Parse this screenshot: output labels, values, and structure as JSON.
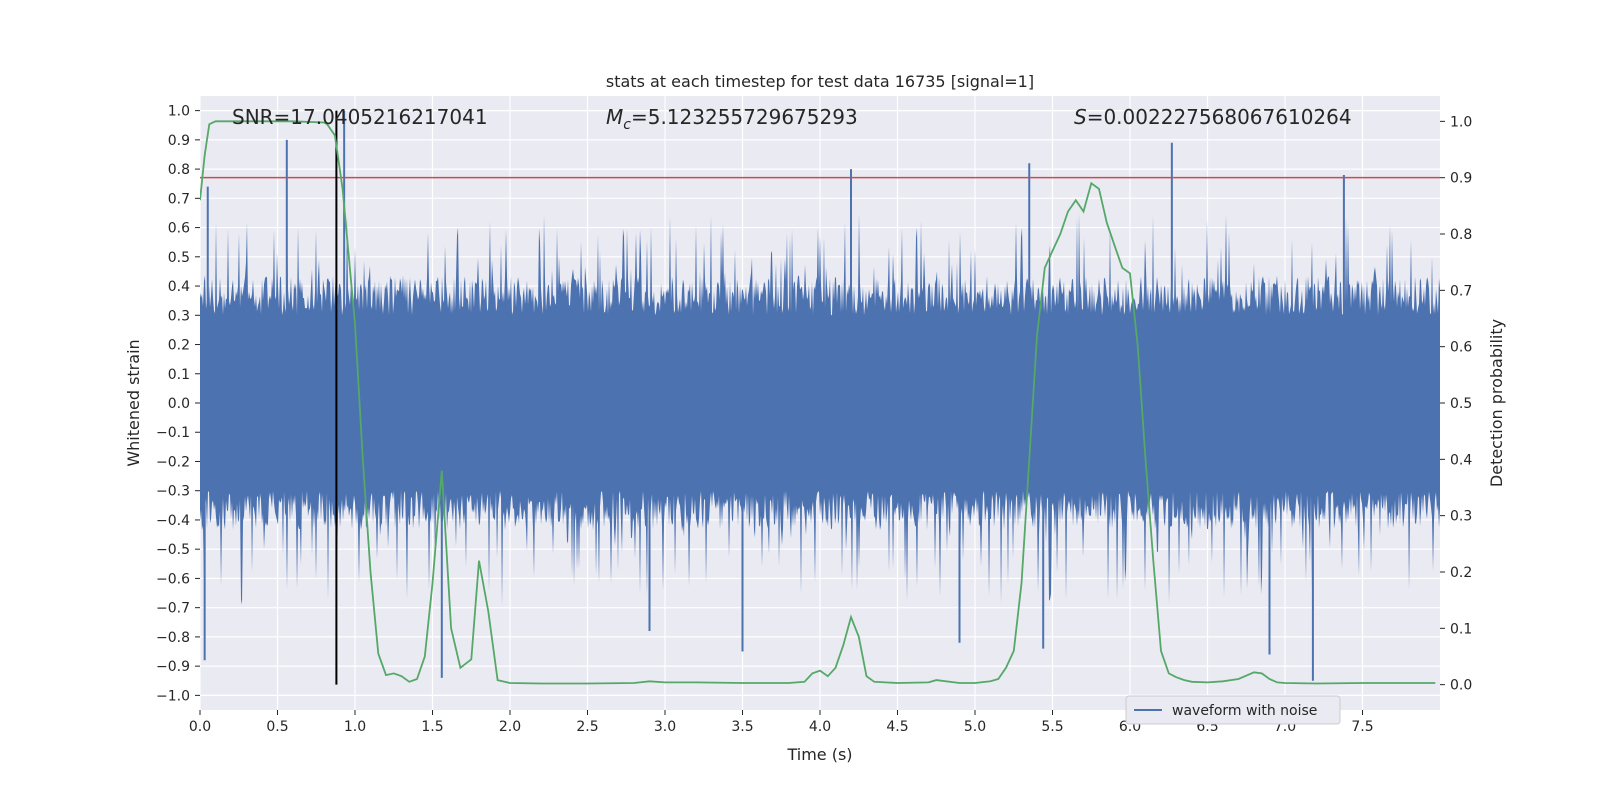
{
  "chart_data": {
    "type": "line",
    "title": "stats at each timestep for test data 16735 [signal=1]",
    "xlabel": "Time (s)",
    "ylabel_left": "Whitened strain",
    "ylabel_right": "Detection probability",
    "xlim": [
      0.0,
      8.0
    ],
    "ylim_left": [
      -1.05,
      1.05
    ],
    "ylim_right": [
      -0.045,
      1.045
    ],
    "x_ticks": [
      "0.0",
      "0.5",
      "1.0",
      "1.5",
      "2.0",
      "2.5",
      "3.0",
      "3.5",
      "4.0",
      "4.5",
      "5.0",
      "5.5",
      "6.0",
      "6.5",
      "7.0",
      "7.5"
    ],
    "y_ticks_left": [
      "-1.0",
      "-0.9",
      "-0.8",
      "-0.7",
      "-0.6",
      "-0.5",
      "-0.4",
      "-0.3",
      "-0.2",
      "-0.1",
      "0.0",
      "0.1",
      "0.2",
      "0.3",
      "0.4",
      "0.5",
      "0.6",
      "0.7",
      "0.8",
      "0.9",
      "1.0"
    ],
    "y_ticks_right": [
      "0.0",
      "0.1",
      "0.2",
      "0.3",
      "0.4",
      "0.5",
      "0.6",
      "0.7",
      "0.8",
      "0.9",
      "1.0"
    ],
    "grid": true,
    "legend_placement": "lower-right",
    "legend": [
      "waveform with noise"
    ],
    "annotations": {
      "snr": "SNR=17.0405216217041",
      "mc_symbol": "M",
      "mc_sub": "c",
      "mc_value": "=5.123255729675293",
      "s_symbol": "S",
      "s_value": "=0.002227568067610264"
    },
    "threshold_right": 0.9,
    "marker_time": 0.88,
    "colors": {
      "waveform": "#4c72b0",
      "probability": "#55a868",
      "threshold": "#c44e52",
      "marker": "#000000",
      "plot_bg": "#eaeaf2",
      "grid": "#ffffff"
    },
    "waveform": {
      "envelope_seed": 16735,
      "spikes": [
        {
          "t": 0.03,
          "v": -0.88
        },
        {
          "t": 0.05,
          "v": 0.74
        },
        {
          "t": 0.56,
          "v": 0.9
        },
        {
          "t": 0.93,
          "v": 1.0
        },
        {
          "t": 1.56,
          "v": -0.94
        },
        {
          "t": 2.9,
          "v": -0.78
        },
        {
          "t": 3.5,
          "v": -0.85
        },
        {
          "t": 4.2,
          "v": 0.8
        },
        {
          "t": 4.9,
          "v": -0.82
        },
        {
          "t": 5.35,
          "v": 0.82
        },
        {
          "t": 5.44,
          "v": -0.84
        },
        {
          "t": 6.27,
          "v": 0.89
        },
        {
          "t": 6.9,
          "v": -0.86
        },
        {
          "t": 7.18,
          "v": -0.95
        },
        {
          "t": 7.38,
          "v": 0.78
        }
      ]
    },
    "probability": {
      "x": [
        0.0,
        0.03,
        0.06,
        0.1,
        0.2,
        0.4,
        0.6,
        0.8,
        0.82,
        0.87,
        0.92,
        1.0,
        1.05,
        1.1,
        1.15,
        1.2,
        1.25,
        1.3,
        1.35,
        1.4,
        1.45,
        1.5,
        1.56,
        1.62,
        1.68,
        1.75,
        1.8,
        1.86,
        1.92,
        2.0,
        2.2,
        2.5,
        2.8,
        2.9,
        3.0,
        3.2,
        3.5,
        3.8,
        3.9,
        3.95,
        4.0,
        4.05,
        4.1,
        4.15,
        4.2,
        4.25,
        4.3,
        4.35,
        4.5,
        4.7,
        4.75,
        4.9,
        5.0,
        5.1,
        5.15,
        5.2,
        5.25,
        5.3,
        5.35,
        5.4,
        5.45,
        5.5,
        5.55,
        5.6,
        5.65,
        5.7,
        5.75,
        5.8,
        5.85,
        5.9,
        5.95,
        6.0,
        6.05,
        6.1,
        6.15,
        6.2,
        6.25,
        6.3,
        6.35,
        6.4,
        6.5,
        6.6,
        6.7,
        6.8,
        6.85,
        6.9,
        6.95,
        7.0,
        7.2,
        7.5,
        7.97
      ],
      "y": [
        0.86,
        0.94,
        0.995,
        1.0,
        1.0,
        1.0,
        1.0,
        0.998,
        0.995,
        0.975,
        0.88,
        0.64,
        0.4,
        0.2,
        0.055,
        0.017,
        0.02,
        0.015,
        0.005,
        0.01,
        0.05,
        0.18,
        0.38,
        0.1,
        0.03,
        0.045,
        0.22,
        0.13,
        0.008,
        0.003,
        0.002,
        0.002,
        0.003,
        0.006,
        0.004,
        0.004,
        0.003,
        0.003,
        0.005,
        0.02,
        0.025,
        0.015,
        0.03,
        0.07,
        0.12,
        0.085,
        0.015,
        0.005,
        0.003,
        0.004,
        0.008,
        0.003,
        0.003,
        0.006,
        0.01,
        0.03,
        0.06,
        0.18,
        0.4,
        0.62,
        0.74,
        0.77,
        0.8,
        0.84,
        0.86,
        0.84,
        0.89,
        0.88,
        0.82,
        0.78,
        0.74,
        0.73,
        0.6,
        0.4,
        0.22,
        0.06,
        0.02,
        0.013,
        0.008,
        0.005,
        0.004,
        0.006,
        0.01,
        0.022,
        0.02,
        0.01,
        0.004,
        0.003,
        0.002,
        0.003,
        0.003
      ]
    }
  }
}
